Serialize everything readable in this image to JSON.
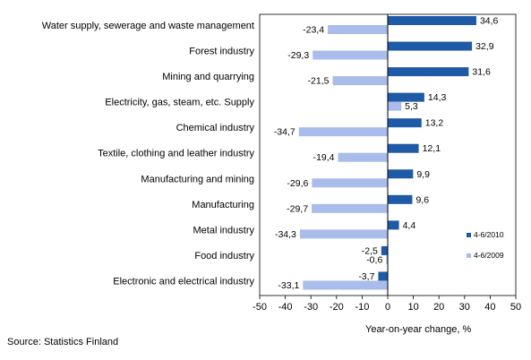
{
  "chart_data": {
    "type": "bar",
    "orientation": "horizontal",
    "categories": [
      "Water supply, sewerage and waste management",
      "Forest industry",
      "Mining and quarrying",
      "Electricity, gas, steam, etc. Supply",
      "Chemical industry",
      "Textile, clothing and leather industry",
      "Manufacturing and mining",
      "Manufacturing",
      "Metal industry",
      "Food industry",
      "Electronic and electrical industry"
    ],
    "series": [
      {
        "name": "4-6/2010",
        "color": "#1f5aa6",
        "values": [
          34.6,
          32.9,
          31.6,
          14.3,
          13.2,
          12.1,
          9.9,
          9.6,
          4.4,
          -2.5,
          -3.7
        ],
        "labels": [
          "34,6",
          "32,9",
          "31,6",
          "14,3",
          "13,2",
          "12,1",
          "9,9",
          "9,6",
          "4,4",
          "-2,5",
          "-3,7"
        ]
      },
      {
        "name": "4-6/2009",
        "color": "#a9bcec",
        "values": [
          -23.4,
          -29.3,
          -21.5,
          5.3,
          -34.7,
          -19.4,
          -29.6,
          -29.7,
          -34.3,
          -0.6,
          -33.1
        ],
        "labels": [
          "-23,4",
          "-29,3",
          "-21,5",
          "5,3",
          "-34,7",
          "-19,4",
          "-29,6",
          "-29,7",
          "-34,3",
          "-0,6",
          "-33,1"
        ]
      }
    ],
    "xlim": [
      -50,
      50
    ],
    "xticks": [
      -50,
      -40,
      -30,
      -20,
      -10,
      0,
      10,
      20,
      30,
      40,
      50
    ],
    "xticklabels": [
      "-50",
      "-40",
      "-30",
      "-20",
      "-10",
      "0",
      "10",
      "20",
      "30",
      "40",
      "50"
    ],
    "xlabel": "Year-on-year change, %",
    "grid": false,
    "legend_position": "right"
  },
  "source": "Source: Statistics Finland"
}
